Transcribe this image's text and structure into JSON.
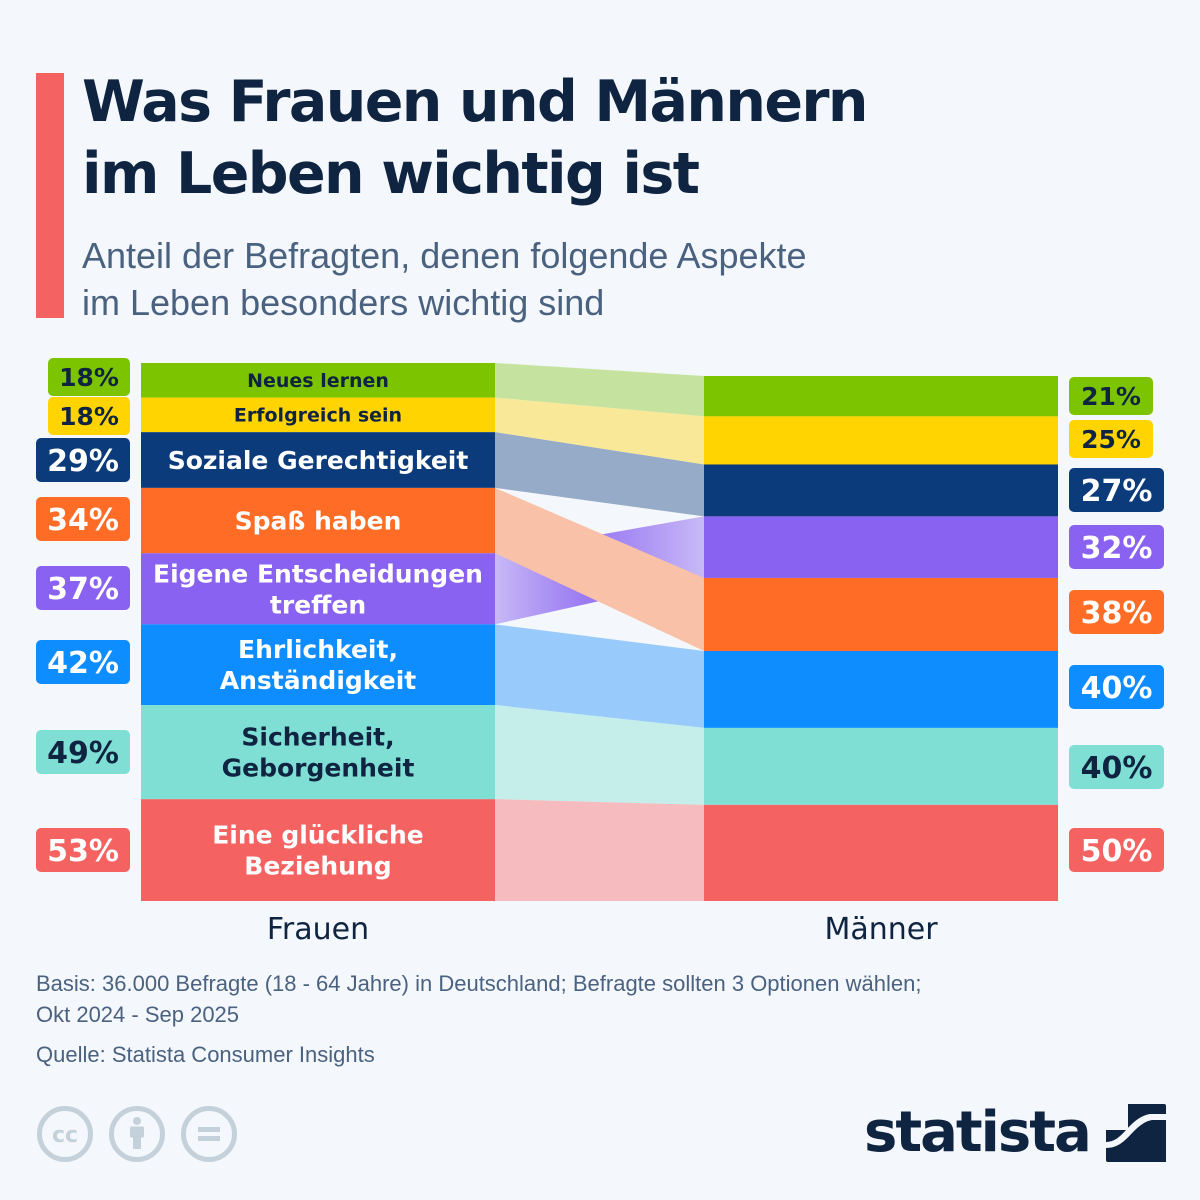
{
  "header": {
    "title_line1": "Was Frauen und Männern",
    "title_line2": "im Leben wichtig ist",
    "subtitle_line1": "Anteil der Befragten, denen folgende Aspekte",
    "subtitle_line2": "im Leben besonders wichtig sind"
  },
  "chart_data": {
    "type": "bar",
    "subtype": "stacked-slope (ribbon) comparison",
    "title": "Was Frauen und Männern im Leben wichtig ist",
    "subtitle": "Anteil der Befragten, denen folgende Aspekte im Leben besonders wichtig sind",
    "categories": [
      "Frauen",
      "Männer"
    ],
    "unit": "%",
    "series": [
      {
        "name": "Neues lernen",
        "label_lines": [
          "Neues lernen"
        ],
        "values": [
          18,
          21
        ],
        "color": "#7dc400",
        "text_color": "#0f2440",
        "band_color": "#c5e39e",
        "rank": [
          1,
          1
        ]
      },
      {
        "name": "Erfolgreich sein",
        "label_lines": [
          "Erfolgreich sein"
        ],
        "values": [
          18,
          25
        ],
        "color": "#ffd400",
        "text_color": "#0f2440",
        "band_color": "#f9e897",
        "rank": [
          2,
          2
        ]
      },
      {
        "name": "Soziale Gerechtigkeit",
        "label_lines": [
          "Soziale Gerechtigkeit"
        ],
        "values": [
          29,
          27
        ],
        "color": "#0b3b7a",
        "text_color": "#ffffff",
        "band_color": "#96abc7",
        "rank": [
          3,
          3
        ]
      },
      {
        "name": "Spaß haben",
        "label_lines": [
          "Spaß haben"
        ],
        "values": [
          34,
          38
        ],
        "color": "#ff6c26",
        "text_color": "#ffffff",
        "band_color": "#f9c1a7",
        "rank": [
          4,
          5
        ]
      },
      {
        "name": "Eigene Entscheidungen treffen",
        "label_lines": [
          "Eigene Entscheidungen",
          "treffen"
        ],
        "values": [
          37,
          32
        ],
        "color": "#8962f1",
        "text_color": "#ffffff",
        "band_color": "#c8baf6",
        "rank": [
          5,
          4
        ]
      },
      {
        "name": "Ehrlichkeit, Anständigkeit",
        "label_lines": [
          "Ehrlichkeit,",
          "Anständigkeit"
        ],
        "values": [
          42,
          40
        ],
        "color": "#0d8dff",
        "text_color": "#ffffff",
        "band_color": "#98cbfb",
        "rank": [
          6,
          6
        ]
      },
      {
        "name": "Sicherheit, Geborgenheit",
        "label_lines": [
          "Sicherheit,",
          "Geborgenheit"
        ],
        "values": [
          49,
          40
        ],
        "color": "#80dfd5",
        "text_color": "#0f2440",
        "band_color": "#c5eeea",
        "rank": [
          7,
          7
        ]
      },
      {
        "name": "Eine glückliche Beziehung",
        "label_lines": [
          "Eine glückliche",
          "Beziehung"
        ],
        "values": [
          53,
          50
        ],
        "color": "#f56262",
        "text_color": "#ffffff",
        "band_color": "#f5bbbe",
        "rank": [
          8,
          8
        ]
      }
    ],
    "xlabel": "",
    "ylabel": "",
    "grid": false,
    "legend": "none"
  },
  "footer": {
    "basis_line1": "Basis: 36.000 Befragte (18 - 64 Jahre) in Deutschland; Befragte sollten 3 Optionen wählen;",
    "basis_line2": "Okt 2024 - Sep 2025",
    "source": "Quelle: Statista Consumer Insights",
    "brand": "statista"
  }
}
